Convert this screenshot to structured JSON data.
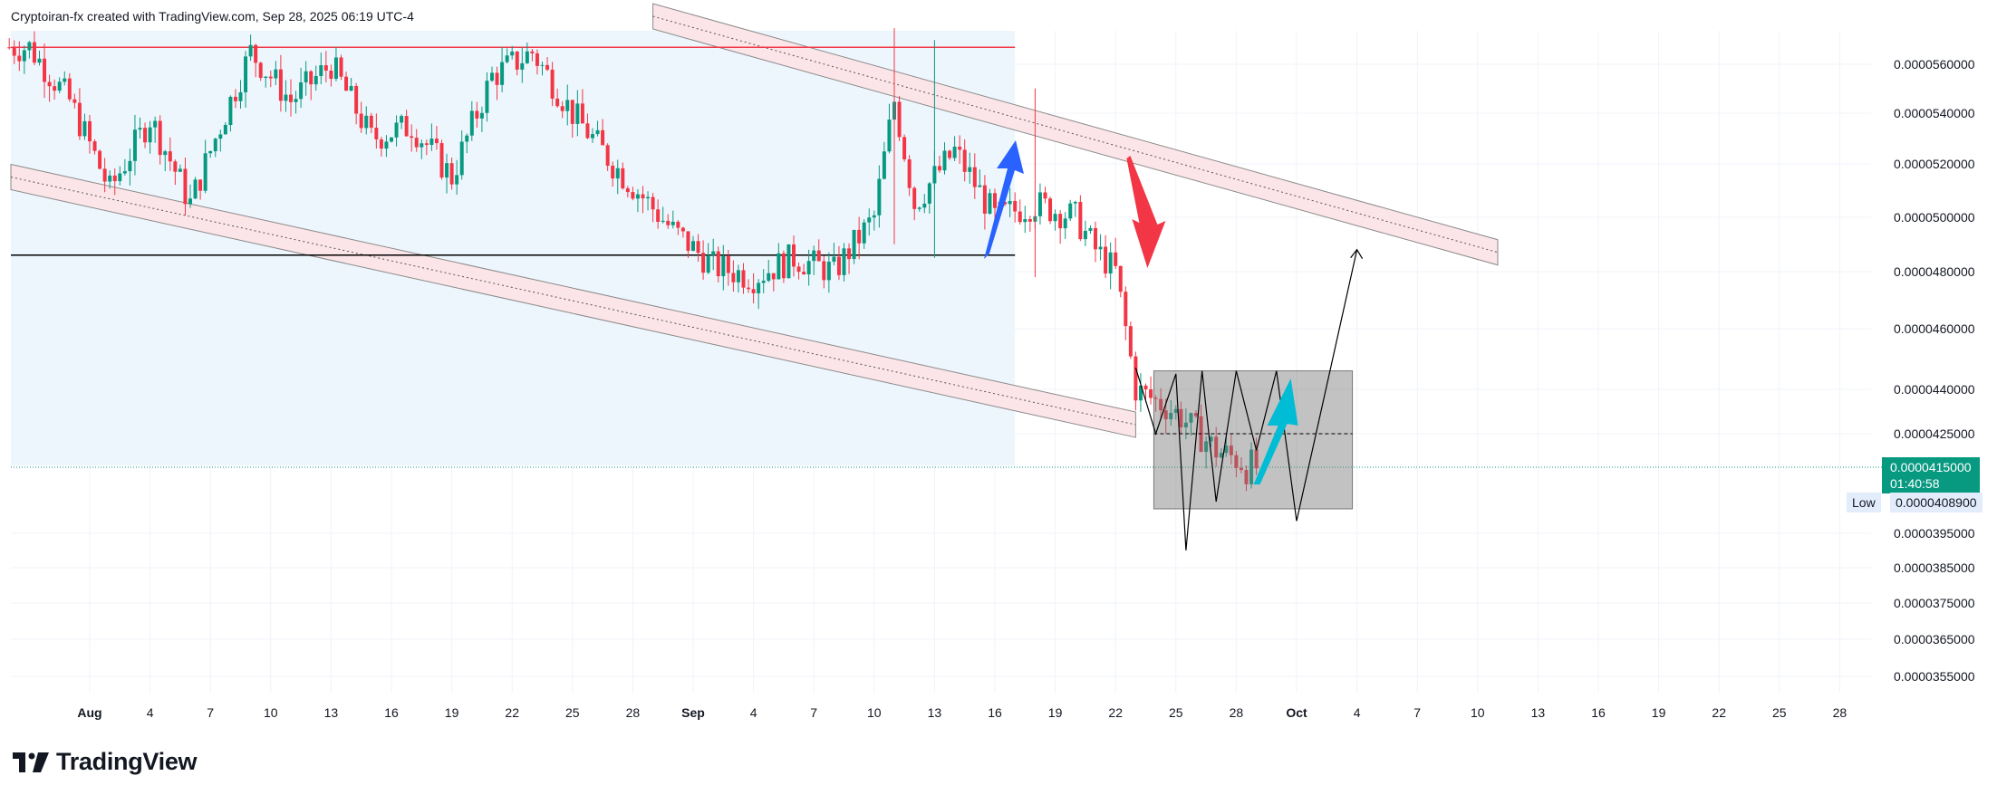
{
  "header": {
    "author": "Cryptoiran-fx",
    "created_text": "created with TradingView.com, Sep 28, 2025 06:19 UTC-4"
  },
  "logo": {
    "text": "TradingView"
  },
  "colors": {
    "up": "#089981",
    "down": "#f23645",
    "resistance": "#f23645",
    "support": "#000000",
    "channel_fill": "#fbe5e8",
    "highlight": "#eef6fd",
    "box": "#9e9e9e",
    "arrow_blue": "#2962ff",
    "arrow_red": "#f23645",
    "arrow_cyan": "#00bcd4"
  },
  "price_axis": {
    "ticks": [
      "0.0000560000",
      "0.0000540000",
      "0.0000520000",
      "0.0000500000",
      "0.0000480000",
      "0.0000460000",
      "0.0000440000",
      "0.0000425000",
      "0.0000395000",
      "0.0000385000",
      "0.0000375000",
      "0.0000365000",
      "0.0000355000"
    ]
  },
  "last_price": {
    "value": "0.0000415000",
    "countdown": "01:40:58"
  },
  "low": {
    "label": "Low",
    "value": "0.0000408900"
  },
  "time_axis": {
    "labels": [
      {
        "text": "Aug",
        "bold": true
      },
      {
        "text": "4",
        "bold": false
      },
      {
        "text": "7",
        "bold": false
      },
      {
        "text": "10",
        "bold": false
      },
      {
        "text": "13",
        "bold": false
      },
      {
        "text": "16",
        "bold": false
      },
      {
        "text": "19",
        "bold": false
      },
      {
        "text": "22",
        "bold": false
      },
      {
        "text": "25",
        "bold": false
      },
      {
        "text": "28",
        "bold": false
      },
      {
        "text": "Sep",
        "bold": true
      },
      {
        "text": "4",
        "bold": false
      },
      {
        "text": "7",
        "bold": false
      },
      {
        "text": "10",
        "bold": false
      },
      {
        "text": "13",
        "bold": false
      },
      {
        "text": "16",
        "bold": false
      },
      {
        "text": "19",
        "bold": false
      },
      {
        "text": "22",
        "bold": false
      },
      {
        "text": "25",
        "bold": false
      },
      {
        "text": "28",
        "bold": false
      },
      {
        "text": "Oct",
        "bold": true
      },
      {
        "text": "4",
        "bold": false
      },
      {
        "text": "7",
        "bold": false
      },
      {
        "text": "10",
        "bold": false
      },
      {
        "text": "13",
        "bold": false
      },
      {
        "text": "16",
        "bold": false
      },
      {
        "text": "19",
        "bold": false
      },
      {
        "text": "22",
        "bold": false
      },
      {
        "text": "25",
        "bold": false
      },
      {
        "text": "28",
        "bold": false
      }
    ]
  },
  "chart_data": {
    "type": "candlestick",
    "title": "",
    "legend": "none",
    "grid": true,
    "price_scale": "log",
    "y_range": [
      3.5e-05,
      5.8e-05
    ],
    "x_range": [
      "2025-07-28",
      "2025-10-29"
    ],
    "series": [
      {
        "name": "",
        "interval": "hours",
        "ohlc_anchors": [
          {
            "date": "2025-07-29",
            "close": 5.67e-05
          },
          {
            "date": "2025-07-31",
            "close": 5.45e-05
          },
          {
            "date": "2025-08-02",
            "close": 5.1e-05
          },
          {
            "date": "2025-08-04",
            "close": 5.38e-05
          },
          {
            "date": "2025-08-06",
            "close": 5.05e-05
          },
          {
            "date": "2025-08-09",
            "close": 5.65e-05
          },
          {
            "date": "2025-08-11",
            "close": 5.45e-05
          },
          {
            "date": "2025-08-13",
            "close": 5.6e-05
          },
          {
            "date": "2025-08-15",
            "close": 5.3e-05
          },
          {
            "date": "2025-08-17",
            "close": 5.35e-05
          },
          {
            "date": "2025-08-19",
            "close": 5.15e-05
          },
          {
            "date": "2025-08-21",
            "close": 5.55e-05
          },
          {
            "date": "2025-08-23",
            "close": 5.65e-05
          },
          {
            "date": "2025-08-25",
            "close": 5.4e-05
          },
          {
            "date": "2025-08-27",
            "close": 5.2e-05
          },
          {
            "date": "2025-08-30",
            "close": 4.95e-05
          },
          {
            "date": "2025-09-01",
            "close": 4.82e-05
          },
          {
            "date": "2025-09-03",
            "close": 4.78e-05
          },
          {
            "date": "2025-09-05",
            "close": 4.85e-05
          },
          {
            "date": "2025-09-07",
            "close": 4.8e-05
          },
          {
            "date": "2025-09-09",
            "close": 5e-05
          },
          {
            "date": "2025-09-10",
            "close": 5.45e-05
          },
          {
            "date": "2025-09-11",
            "close": 5.05e-05
          },
          {
            "date": "2025-09-13",
            "close": 5.25e-05
          },
          {
            "date": "2025-09-15",
            "close": 5e-05
          },
          {
            "date": "2025-09-17",
            "close": 5.05e-05
          },
          {
            "date": "2025-09-19",
            "close": 5e-05
          },
          {
            "date": "2025-09-20",
            "close": 4.88e-05
          },
          {
            "date": "2025-09-21",
            "close": 4.8e-05
          },
          {
            "date": "2025-09-22",
            "close": 4.4e-05
          },
          {
            "date": "2025-09-24",
            "close": 4.32e-05
          },
          {
            "date": "2025-09-26",
            "close": 4.2e-05
          },
          {
            "date": "2025-09-28",
            "close": 4.15e-05
          }
        ]
      }
    ],
    "annotations": {
      "resistance_price": 5.67e-05,
      "support_price": 4.86e-05,
      "highlight_range": [
        "2025-07-28",
        "2025-09-16"
      ],
      "descending_channels": [
        {
          "start_date": "2025-07-28",
          "start_price": 5.15e-05,
          "end_date": "2025-09-22",
          "end_price": 4.28e-05
        },
        {
          "start_date": "2025-08-29",
          "start_price": 5.8e-05,
          "end_date": "2025-10-10",
          "end_price": 4.87e-05
        }
      ],
      "range_box": {
        "date_from": "2025-09-22",
        "date_to": "2025-10-03",
        "price_top": 4.46e-05,
        "price_bottom": 4.05e-05
      },
      "box_midline": 4.25e-05,
      "projection_path": [
        {
          "date": "2025-09-22",
          "price": 4.47e-05
        },
        {
          "date": "2025-09-23",
          "price": 4.25e-05
        },
        {
          "date": "2025-09-24",
          "price": 4.45e-05
        },
        {
          "date": "2025-09-24.5",
          "price": 3.9e-05
        },
        {
          "date": "2025-09-25.3",
          "price": 4.46e-05
        },
        {
          "date": "2025-09-26",
          "price": 4.08e-05
        },
        {
          "date": "2025-09-27",
          "price": 4.46e-05
        },
        {
          "date": "2025-09-28",
          "price": 4.2e-05
        },
        {
          "date": "2025-09-29",
          "price": 4.46e-05
        },
        {
          "date": "2025-09-30",
          "price": 4e-05
        },
        {
          "date": "2025-10-03",
          "price": 4.88e-05
        }
      ],
      "arrows": [
        {
          "color": "blue",
          "direction": "up",
          "date": "2025-09-15"
        },
        {
          "color": "red",
          "direction": "down",
          "date": "2025-09-22"
        },
        {
          "color": "cyan",
          "direction": "up",
          "date": "2025-09-28"
        }
      ]
    }
  }
}
